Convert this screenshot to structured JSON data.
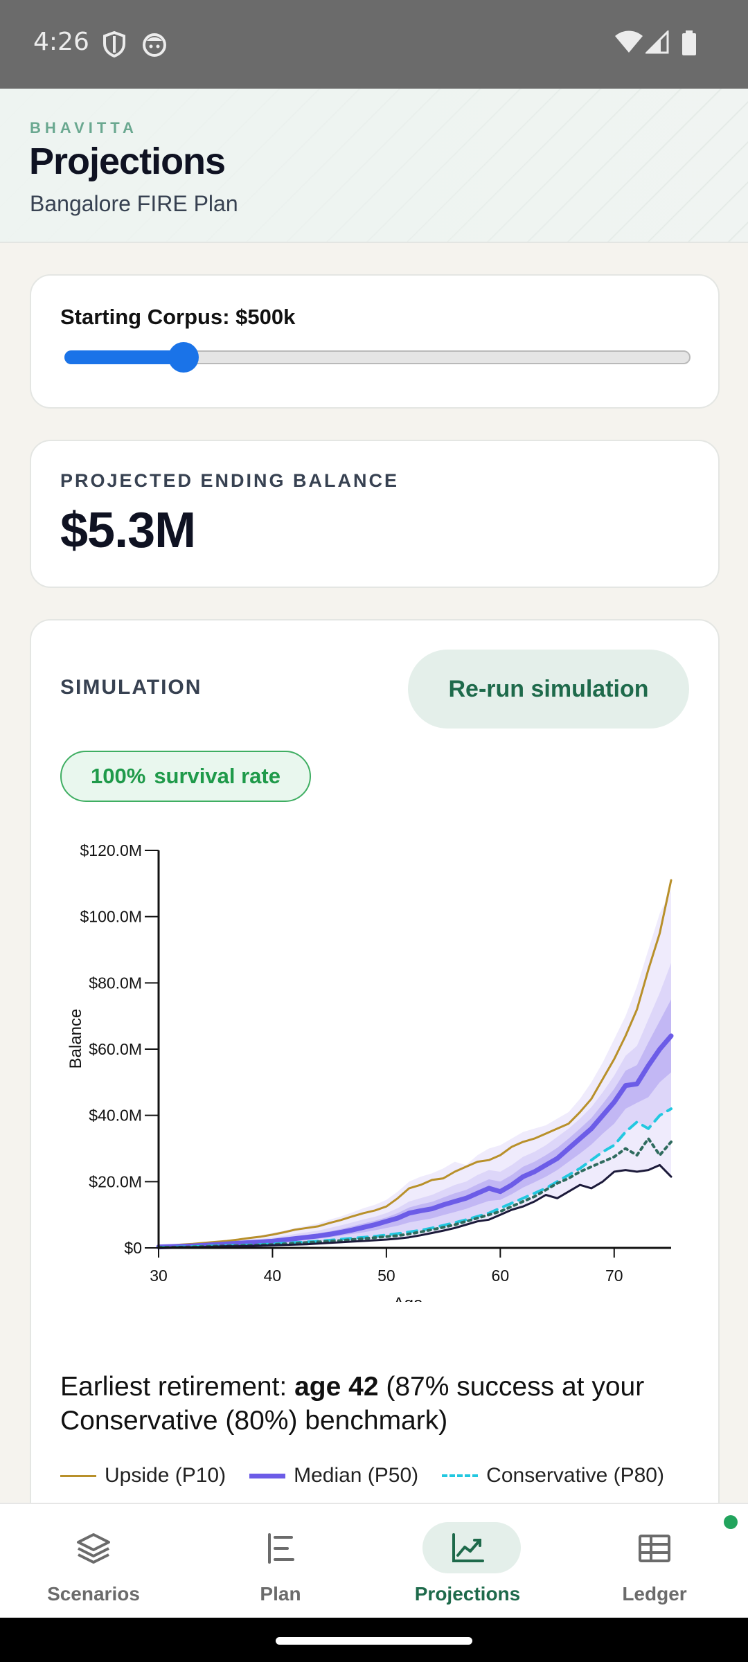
{
  "status_bar": {
    "time": "4:26",
    "icons": [
      "shield-icon",
      "face-icon",
      "wifi-icon",
      "signal-icon",
      "battery-icon"
    ]
  },
  "header": {
    "brand": "BHAVITTA",
    "title": "Projections",
    "subtitle": "Bangalore FIRE Plan"
  },
  "corpus": {
    "label": "Starting Corpus: $500k",
    "slider_fraction": 0.19,
    "accent": "#1a73e8"
  },
  "kpi": {
    "label": "PROJECTED ENDING BALANCE",
    "value": "$5.3M"
  },
  "simulation": {
    "label": "SIMULATION",
    "rerun_label": "Re-run simulation",
    "survival_value": "100%",
    "survival_label": "survival rate"
  },
  "retirement": {
    "prefix": "Earliest retirement: ",
    "age": "age 42",
    "suffix": " (87% success at your Conservative (80%) benchmark)"
  },
  "chart_data": {
    "type": "line",
    "xlabel": "Age",
    "ylabel": "Balance",
    "xlim": [
      30,
      75
    ],
    "ylim": [
      0,
      120
    ],
    "x_ticks": [
      30,
      40,
      50,
      60,
      70
    ],
    "y_ticks": [
      0,
      20,
      40,
      60,
      80,
      100,
      120
    ],
    "y_tick_labels": [
      "$0",
      "$20.0M",
      "$40.0M",
      "$60.0M",
      "$80.0M",
      "$100.0M",
      "$120.0M"
    ],
    "x": [
      30,
      31,
      32,
      33,
      34,
      35,
      36,
      37,
      38,
      39,
      40,
      41,
      42,
      43,
      44,
      45,
      46,
      47,
      48,
      49,
      50,
      51,
      52,
      53,
      54,
      55,
      56,
      57,
      58,
      59,
      60,
      61,
      62,
      63,
      64,
      65,
      66,
      67,
      68,
      69,
      70,
      71,
      72,
      73,
      74,
      75
    ],
    "series": [
      {
        "name": "Upside (P10)",
        "color": "#b8902a",
        "dash": "",
        "width": 3,
        "values": [
          0.5,
          0.7,
          1.0,
          1.2,
          1.5,
          1.8,
          2.1,
          2.5,
          3.0,
          3.4,
          4.0,
          4.7,
          5.5,
          6.0,
          6.5,
          7.5,
          8.4,
          9.5,
          10.5,
          11.3,
          12.5,
          15.0,
          18.0,
          19.0,
          20.5,
          21.0,
          23.0,
          24.5,
          26.0,
          26.5,
          28.0,
          30.5,
          32.0,
          33.0,
          34.5,
          36.0,
          37.5,
          41.0,
          45.0,
          51.0,
          57.0,
          64.0,
          72.0,
          84.0,
          95.0,
          111.0
        ]
      },
      {
        "name": "Median (P50)",
        "color": "#6c5ce7",
        "dash": "",
        "width": 7,
        "values": [
          0.3,
          0.4,
          0.5,
          0.6,
          0.8,
          1.0,
          1.2,
          1.4,
          1.6,
          1.8,
          2.0,
          2.4,
          2.8,
          3.2,
          3.6,
          4.1,
          4.7,
          5.4,
          6.2,
          7.0,
          8.0,
          9.0,
          10.5,
          11.2,
          11.8,
          13.0,
          14.0,
          15.0,
          16.5,
          18.0,
          17.0,
          19.0,
          21.5,
          23.0,
          25.0,
          27.0,
          30.0,
          33.0,
          36.0,
          40.0,
          44.0,
          49.0,
          49.5,
          55.0,
          60.0,
          64.0
        ]
      },
      {
        "name": "Conservative (P80)",
        "color": "#22c8e0",
        "dash": "14,10",
        "width": 4,
        "values": [
          0.2,
          0.2,
          0.3,
          0.4,
          0.5,
          0.6,
          0.7,
          0.8,
          0.9,
          1.0,
          1.2,
          1.4,
          1.6,
          1.8,
          2.0,
          2.3,
          2.6,
          2.9,
          3.2,
          3.5,
          3.9,
          4.3,
          4.8,
          5.3,
          6.0,
          6.8,
          7.6,
          8.5,
          9.5,
          10.5,
          12.0,
          13.5,
          15.0,
          16.5,
          18.0,
          20.0,
          22.0,
          24.0,
          26.5,
          29.0,
          31.0,
          35.0,
          38.0,
          36.0,
          40.0,
          42.0
        ]
      },
      {
        "name": "",
        "color": "#2f6b5e",
        "dash": "4,6",
        "width": 4,
        "values": [
          0.1,
          0.2,
          0.2,
          0.3,
          0.4,
          0.5,
          0.6,
          0.7,
          0.8,
          0.9,
          1.0,
          1.2,
          1.4,
          1.6,
          1.8,
          2.0,
          2.2,
          2.5,
          2.8,
          3.1,
          3.4,
          3.7,
          4.2,
          4.8,
          5.5,
          6.2,
          7.0,
          8.0,
          9.0,
          10.0,
          11.0,
          12.5,
          14.0,
          15.5,
          17.5,
          19.5,
          21.0,
          23.0,
          24.5,
          26.0,
          27.5,
          30.0,
          28.0,
          33.0,
          28.0,
          32.0
        ]
      },
      {
        "name": "",
        "color": "#1c1a3a",
        "dash": "",
        "width": 3,
        "values": [
          0.1,
          0.1,
          0.2,
          0.2,
          0.3,
          0.4,
          0.5,
          0.5,
          0.6,
          0.7,
          0.8,
          0.9,
          1.0,
          1.1,
          1.3,
          1.5,
          1.7,
          1.9,
          2.1,
          2.3,
          2.5,
          2.8,
          3.2,
          3.8,
          4.5,
          5.2,
          6.0,
          7.0,
          8.0,
          8.5,
          10.0,
          11.5,
          12.5,
          14.0,
          16.0,
          15.0,
          17.0,
          19.0,
          18.0,
          20.0,
          23.0,
          23.5,
          23.0,
          23.5,
          25.0,
          21.5
        ]
      }
    ],
    "bands": [
      {
        "color": "#ece8fb",
        "lower": [
          0.1,
          0.1,
          0.2,
          0.2,
          0.3,
          0.4,
          0.5,
          0.5,
          0.6,
          0.7,
          0.8,
          0.9,
          1.0,
          1.1,
          1.3,
          1.5,
          1.7,
          1.9,
          2.1,
          2.3,
          2.5,
          2.8,
          3.2,
          3.8,
          4.5,
          5.2,
          6.0,
          7.0,
          8.0,
          8.5,
          10.0,
          11.5,
          12.5,
          14.0,
          16.0,
          15.0,
          17.0,
          19.0,
          18.0,
          20.0,
          23.0,
          23.5,
          23.0,
          23.5,
          25.0,
          21.5
        ],
        "upper": [
          0.6,
          0.8,
          1.1,
          1.4,
          1.7,
          2.0,
          2.4,
          2.8,
          3.3,
          3.8,
          4.5,
          5.2,
          6.0,
          6.7,
          7.4,
          8.5,
          9.5,
          10.7,
          12.0,
          13.0,
          14.5,
          17.0,
          20.0,
          21.5,
          22.5,
          24.0,
          26.0,
          25.0,
          28.0,
          30.0,
          31.0,
          33.0,
          35.0,
          36.0,
          37.0,
          39.0,
          41.0,
          45.0,
          50.0,
          56.0,
          63.0,
          70.0,
          79.0,
          90.0,
          101.0,
          108.0
        ]
      },
      {
        "color": "#d9d2f8",
        "lower": [
          0.2,
          0.2,
          0.3,
          0.4,
          0.5,
          0.6,
          0.7,
          0.8,
          0.9,
          1.0,
          1.2,
          1.4,
          1.6,
          1.8,
          2.0,
          2.3,
          2.6,
          2.9,
          3.2,
          3.5,
          3.9,
          4.3,
          4.8,
          5.3,
          6.0,
          6.8,
          7.6,
          8.5,
          9.5,
          10.5,
          12.0,
          13.5,
          15.0,
          16.5,
          18.0,
          20.0,
          22.0,
          24.0,
          26.5,
          29.0,
          31.0,
          35.0,
          38.0,
          36.0,
          40.0,
          42.0
        ],
        "upper": [
          0.4,
          0.6,
          0.8,
          1.0,
          1.2,
          1.5,
          1.7,
          2.0,
          2.4,
          2.7,
          3.1,
          3.6,
          4.2,
          4.7,
          5.2,
          6.0,
          6.8,
          7.7,
          8.6,
          9.4,
          10.5,
          12.0,
          14.0,
          15.0,
          16.0,
          17.5,
          19.0,
          20.0,
          22.0,
          23.5,
          23.0,
          25.0,
          27.5,
          29.0,
          31.0,
          33.5,
          36.0,
          39.0,
          42.5,
          47.0,
          52.0,
          58.0,
          61.0,
          69.0,
          77.0,
          86.0
        ]
      },
      {
        "color": "#bdb1f3",
        "lower": [
          0.2,
          0.3,
          0.4,
          0.5,
          0.6,
          0.8,
          0.9,
          1.1,
          1.2,
          1.4,
          1.6,
          1.9,
          2.2,
          2.5,
          2.8,
          3.2,
          3.7,
          4.2,
          4.7,
          5.3,
          6.0,
          6.7,
          7.7,
          8.3,
          8.9,
          9.9,
          10.8,
          11.8,
          13.0,
          14.2,
          14.5,
          16.2,
          18.2,
          19.8,
          21.5,
          23.5,
          26.0,
          28.5,
          31.2,
          34.5,
          37.5,
          42.0,
          43.8,
          45.5,
          50.0,
          53.0
        ],
        "upper": [
          0.4,
          0.5,
          0.6,
          0.8,
          1.0,
          1.2,
          1.4,
          1.7,
          2.0,
          2.2,
          2.5,
          3.0,
          3.5,
          3.9,
          4.4,
          5.0,
          5.7,
          6.5,
          7.4,
          8.2,
          9.2,
          10.5,
          12.2,
          13.1,
          13.9,
          15.2,
          16.5,
          17.5,
          19.2,
          20.7,
          20.0,
          22.0,
          24.5,
          26.0,
          28.0,
          30.2,
          33.0,
          36.0,
          39.2,
          43.5,
          48.0,
          53.5,
          55.2,
          62.0,
          68.5,
          75.0
        ]
      }
    ]
  },
  "legend": [
    {
      "label": "Upside (P10)",
      "color": "#b8902a",
      "style": "solid"
    },
    {
      "label": "Median (P50)",
      "color": "#6c5ce7",
      "style": "thick"
    },
    {
      "label": "Conservative (P80)",
      "color": "#22c8e0",
      "style": "dashed"
    }
  ],
  "nav": {
    "items": [
      {
        "label": "Scenarios",
        "icon": "layers-icon",
        "active": false
      },
      {
        "label": "Plan",
        "icon": "list-icon",
        "active": false
      },
      {
        "label": "Projections",
        "icon": "trend-chart-icon",
        "active": true
      },
      {
        "label": "Ledger",
        "icon": "table-icon",
        "active": false
      }
    ]
  },
  "colors": {
    "brand": "#1e6a4b",
    "accent": "#6c5ce7",
    "success": "#1f9a4a"
  }
}
